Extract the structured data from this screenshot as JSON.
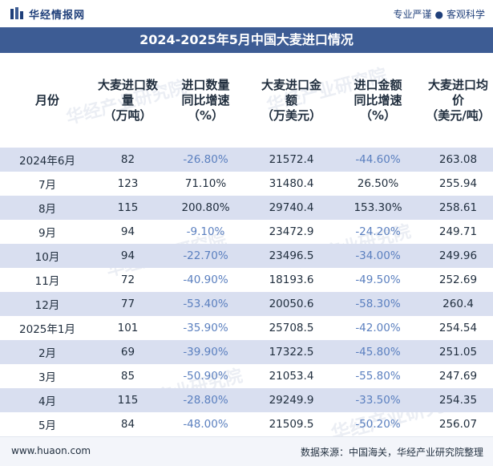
{
  "brand": {
    "name": "华经情报网",
    "tagline_left": "专业严谨",
    "tagline_right": "客观科学"
  },
  "title": "2024-2025年5月中国大麦进口情况",
  "table": {
    "headers": [
      "月份",
      "大麦进口数\n量\n（万吨）",
      "进口数量\n同比增速\n（%）",
      "大麦进口金\n额\n（万美元）",
      "进口金额\n同比增速\n（%）",
      "大麦进口均\n价\n（美元/吨）"
    ],
    "rows": [
      [
        "2024年6月",
        "82",
        "-26.80%",
        "21572.4",
        "-44.60%",
        "263.08"
      ],
      [
        "7月",
        "123",
        "71.10%",
        "31480.4",
        "26.50%",
        "255.94"
      ],
      [
        "8月",
        "115",
        "200.80%",
        "29740.4",
        "153.30%",
        "258.61"
      ],
      [
        "9月",
        "94",
        "-9.10%",
        "23472.9",
        "-24.20%",
        "249.71"
      ],
      [
        "10月",
        "94",
        "-22.70%",
        "23496.5",
        "-34.00%",
        "249.96"
      ],
      [
        "11月",
        "72",
        "-40.90%",
        "18193.6",
        "-49.50%",
        "252.69"
      ],
      [
        "12月",
        "77",
        "-53.40%",
        "20050.6",
        "-58.30%",
        "260.4"
      ],
      [
        "2025年1月",
        "101",
        "-35.90%",
        "25708.5",
        "-42.00%",
        "254.54"
      ],
      [
        "2月",
        "69",
        "-39.90%",
        "17322.5",
        "-45.80%",
        "251.05"
      ],
      [
        "3月",
        "85",
        "-50.90%",
        "21053.4",
        "-55.80%",
        "247.69"
      ],
      [
        "4月",
        "115",
        "-28.80%",
        "29249.9",
        "-33.50%",
        "254.35"
      ],
      [
        "5月",
        "84",
        "-48.00%",
        "21509.5",
        "-50.20%",
        "256.07"
      ]
    ]
  },
  "footer": {
    "site": "www.huaon.com",
    "source": "数据来源：中国海关，华经产业研究院整理"
  },
  "watermark": "华经产业研究院",
  "colors": {
    "title_bg": "#3d5c94",
    "shaded_row": "#d9dff0",
    "negative": "#5a7fbf"
  }
}
